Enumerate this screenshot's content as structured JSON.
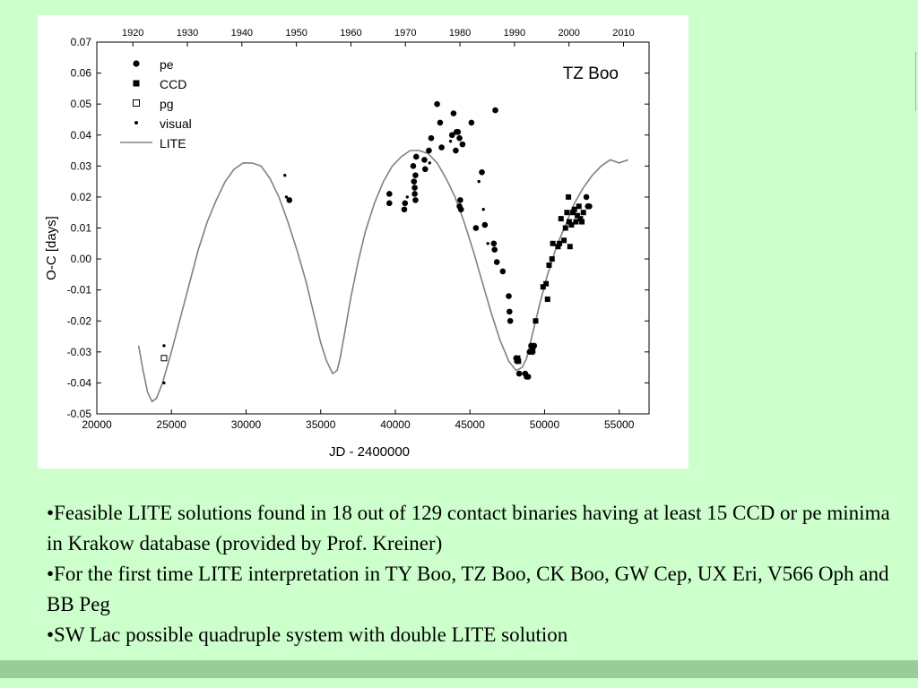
{
  "colors": {
    "background": "#ccffcc",
    "footer_band": "#99cc99",
    "panel": "#ffffff",
    "curve": "#808080",
    "marker": "#000000"
  },
  "bullets": [
    "•Feasible LITE solutions found in 18 out of 129 contact binaries having at least 15 CCD or pe minima in Krakow database (provided by Prof. Kreiner)",
    "•For the first time LITE interpretation in TY Boo, TZ Boo, CK Boo, GW Cep, UX Eri, V566 Oph and BB Peg",
    "•SW Lac possible quadruple system with double LITE solution"
  ],
  "chart_data": {
    "type": "scatter",
    "title": "TZ Boo",
    "xlabel": "JD - 2400000",
    "ylabel": "O-C [days]",
    "xlim": [
      20000,
      57000
    ],
    "ylim": [
      -0.05,
      0.07
    ],
    "x_ticks": [
      20000,
      25000,
      30000,
      35000,
      40000,
      45000,
      50000,
      55000
    ],
    "x_tick_labels": [
      "20000",
      "25000",
      "30000",
      "35000",
      "40000",
      "45000",
      "50000",
      "55000"
    ],
    "y_ticks": [
      -0.05,
      -0.04,
      -0.03,
      -0.02,
      -0.01,
      0.0,
      0.01,
      0.02,
      0.03,
      0.04,
      0.05,
      0.06,
      0.07
    ],
    "y_tick_labels": [
      "-0.05",
      "-0.04",
      "-0.03",
      "-0.02",
      "-0.01",
      "0.00",
      "0.01",
      "0.02",
      "0.03",
      "0.04",
      "0.05",
      "0.06",
      "0.07"
    ],
    "top_axis_ticks": [
      1920,
      1930,
      1940,
      1950,
      1960,
      1970,
      1980,
      1990,
      2000,
      2010
    ],
    "top_axis_tick_jd": [
      22415,
      26068,
      29720,
      33373,
      37025,
      40678,
      44330,
      47983,
      51635,
      55288
    ],
    "legend": [
      "pe",
      "CCD",
      "pg",
      "visual",
      "LITE"
    ],
    "legend_position": "top-left",
    "grid": false,
    "series": [
      {
        "name": "pe",
        "marker": "filled-circle",
        "x": [
          39600,
          39600,
          40600,
          40650,
          41200,
          41250,
          41300,
          41300,
          41350,
          41350,
          41400,
          41950,
          42000,
          42250,
          42400,
          42800,
          43000,
          43100,
          43800,
          43900,
          44050,
          44100,
          44200,
          44300,
          44300,
          44350,
          44400,
          44500,
          45100,
          45400,
          45800,
          46000,
          46600,
          46650,
          46700,
          46800,
          47200,
          47600,
          47650,
          47700,
          48100,
          48150,
          48300,
          48700,
          48800,
          48900,
          49000,
          49100,
          49200,
          49200,
          49300,
          52800,
          52900,
          53000,
          32900
        ],
        "y": [
          0.021,
          0.018,
          0.016,
          0.018,
          0.03,
          0.025,
          0.023,
          0.021,
          0.027,
          0.019,
          0.033,
          0.032,
          0.029,
          0.035,
          0.039,
          0.05,
          0.044,
          0.036,
          0.04,
          0.047,
          0.035,
          0.041,
          0.041,
          0.039,
          0.017,
          0.019,
          0.016,
          0.037,
          0.044,
          0.01,
          0.028,
          0.011,
          0.005,
          0.003,
          0.048,
          -0.001,
          -0.004,
          -0.012,
          -0.017,
          -0.02,
          -0.032,
          -0.033,
          -0.037,
          -0.037,
          -0.038,
          -0.038,
          -0.03,
          -0.028,
          -0.029,
          -0.03,
          -0.028,
          0.02,
          0.017,
          0.017,
          0.019
        ]
      },
      {
        "name": "CCD",
        "marker": "filled-square",
        "x": [
          48200,
          48250,
          49400,
          49900,
          50100,
          50200,
          50300,
          50500,
          50550,
          50900,
          51000,
          51100,
          51300,
          51400,
          51500,
          51600,
          51650,
          51700,
          51800,
          51900,
          52000,
          52100,
          52200,
          52300,
          52400,
          52500,
          52600
        ],
        "y": [
          -0.032,
          -0.033,
          -0.02,
          -0.009,
          -0.008,
          -0.013,
          -0.002,
          0.0,
          0.005,
          0.004,
          0.005,
          0.013,
          0.006,
          0.01,
          0.015,
          0.02,
          0.012,
          0.004,
          0.011,
          0.015,
          0.016,
          0.012,
          0.014,
          0.017,
          0.013,
          0.012,
          0.015
        ]
      },
      {
        "name": "pg",
        "marker": "open-square",
        "x": [
          24500
        ],
        "y": [
          -0.032
        ]
      },
      {
        "name": "visual",
        "marker": "small-dot",
        "x": [
          24500,
          24500,
          32600,
          32700,
          45600,
          45900,
          46200,
          42300,
          40800,
          43700
        ],
        "y": [
          -0.028,
          -0.04,
          0.027,
          0.02,
          0.025,
          0.016,
          0.005,
          0.031,
          0.02,
          0.038
        ]
      }
    ],
    "lite_curve": {
      "name": "LITE",
      "x": [
        22800,
        23100,
        23400,
        23700,
        24000,
        24400,
        25000,
        25600,
        26200,
        26800,
        27400,
        28000,
        28600,
        29200,
        29800,
        30400,
        31000,
        31600,
        32200,
        32800,
        33400,
        34000,
        34600,
        35000,
        35400,
        35800,
        36100,
        36300,
        36600,
        37000,
        37500,
        38000,
        38600,
        39200,
        39800,
        40400,
        41000,
        41600,
        42200,
        42800,
        43400,
        44000,
        44600,
        45200,
        45800,
        46400,
        47000,
        47600,
        48100,
        48500,
        48800,
        49000,
        49300,
        49700,
        50200,
        50800,
        51400,
        52000,
        52600,
        53200,
        53800,
        54400,
        55000,
        55600
      ],
      "y": [
        -0.028,
        -0.036,
        -0.043,
        -0.046,
        -0.045,
        -0.04,
        -0.03,
        -0.019,
        -0.008,
        0.003,
        0.012,
        0.019,
        0.025,
        0.029,
        0.031,
        0.031,
        0.03,
        0.026,
        0.02,
        0.012,
        0.003,
        -0.007,
        -0.019,
        -0.027,
        -0.033,
        -0.037,
        -0.036,
        -0.032,
        -0.024,
        -0.013,
        -0.001,
        0.009,
        0.018,
        0.025,
        0.03,
        0.033,
        0.035,
        0.035,
        0.034,
        0.031,
        0.026,
        0.02,
        0.012,
        0.003,
        -0.007,
        -0.017,
        -0.026,
        -0.033,
        -0.036,
        -0.035,
        -0.032,
        -0.028,
        -0.022,
        -0.014,
        -0.005,
        0.004,
        0.011,
        0.018,
        0.023,
        0.027,
        0.03,
        0.032,
        0.031,
        0.032
      ]
    }
  }
}
